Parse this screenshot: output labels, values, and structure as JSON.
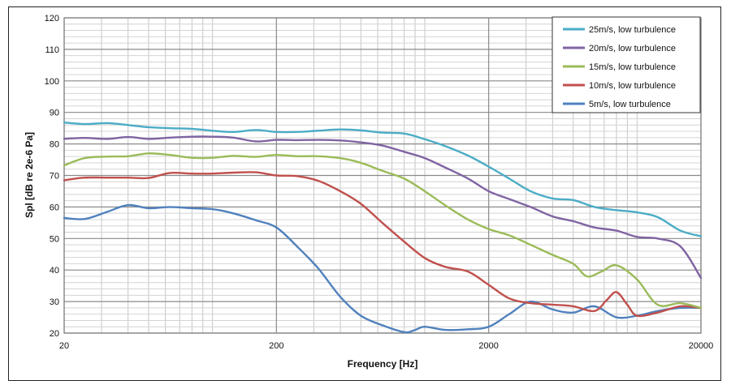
{
  "chart_data": {
    "type": "line",
    "title": "",
    "xlabel": "Frequency [Hz]",
    "ylabel": "Spl [dB re 2e-6 Pa]",
    "xscale": "log",
    "xlim": [
      20,
      20000
    ],
    "ylim": [
      20,
      120
    ],
    "x_ticks": [
      20,
      200,
      2000,
      20000
    ],
    "x_tick_labels": [
      "20",
      "200",
      "2000",
      "20000"
    ],
    "y_ticks": [
      20,
      30,
      40,
      50,
      60,
      70,
      80,
      90,
      100,
      110,
      120
    ],
    "y_tick_labels": [
      "20",
      "30",
      "40",
      "50",
      "60",
      "70",
      "80",
      "90",
      "100",
      "110",
      "120"
    ],
    "grid": true,
    "legend_position": "top-right",
    "series": [
      {
        "name": "25m/s, low turbulence",
        "color": "#4BACC6",
        "x": [
          20,
          25,
          32,
          40,
          50,
          63,
          80,
          100,
          125,
          160,
          200,
          250,
          315,
          400,
          500,
          630,
          800,
          1000,
          1250,
          1600,
          2000,
          2500,
          3150,
          4000,
          5000,
          6300,
          8000,
          10000,
          12500,
          16000,
          20000
        ],
        "y": [
          86.8,
          86.3,
          86.6,
          86.0,
          85.3,
          85.0,
          84.8,
          84.2,
          83.8,
          84.4,
          83.8,
          83.8,
          84.2,
          84.6,
          84.3,
          83.6,
          83.3,
          81.5,
          79.3,
          76.3,
          72.8,
          69.0,
          65.0,
          62.7,
          62.2,
          60.0,
          59.0,
          58.3,
          56.8,
          52.5,
          50.7
        ]
      },
      {
        "name": "20m/s, low turbulence",
        "color": "#8064A2",
        "x": [
          20,
          25,
          32,
          40,
          50,
          63,
          80,
          100,
          125,
          160,
          200,
          250,
          315,
          400,
          500,
          630,
          800,
          1000,
          1250,
          1600,
          2000,
          2500,
          3150,
          4000,
          5000,
          6300,
          8000,
          10000,
          12500,
          16000,
          20000
        ],
        "y": [
          81.6,
          81.9,
          81.6,
          82.2,
          81.6,
          82.0,
          82.3,
          82.3,
          82.0,
          80.8,
          81.3,
          81.2,
          81.3,
          81.1,
          80.5,
          79.5,
          77.5,
          75.5,
          72.5,
          69.0,
          65.0,
          62.5,
          60.0,
          57.0,
          55.5,
          53.5,
          52.5,
          50.5,
          50.0,
          47.5,
          37.5
        ]
      },
      {
        "name": "15m/s, low turbulence",
        "color": "#9BBB59",
        "x": [
          20,
          25,
          32,
          40,
          50,
          63,
          80,
          100,
          125,
          160,
          200,
          250,
          315,
          400,
          500,
          630,
          800,
          1000,
          1250,
          1600,
          2000,
          2500,
          3150,
          4000,
          5000,
          5800,
          6800,
          8000,
          10000,
          12500,
          16000,
          20000
        ],
        "y": [
          73.2,
          75.5,
          76.0,
          76.1,
          77.0,
          76.5,
          75.6,
          75.6,
          76.2,
          75.9,
          76.5,
          76.1,
          76.1,
          75.5,
          74.0,
          71.5,
          69.0,
          65.0,
          60.5,
          56.0,
          53.0,
          51.0,
          48.0,
          44.8,
          42.0,
          38.0,
          39.5,
          41.5,
          37.0,
          29.0,
          29.5,
          28.0
        ]
      },
      {
        "name": "10m/s,  low turbulence",
        "color": "#C0504D",
        "x": [
          20,
          25,
          32,
          40,
          50,
          63,
          80,
          100,
          125,
          160,
          200,
          250,
          315,
          400,
          500,
          630,
          800,
          1000,
          1250,
          1600,
          2000,
          2500,
          3150,
          4000,
          5000,
          6300,
          7200,
          8000,
          9000,
          10000,
          12500,
          16000,
          20000
        ],
        "y": [
          68.5,
          69.3,
          69.3,
          69.3,
          69.2,
          70.8,
          70.6,
          70.6,
          70.9,
          71.0,
          70.0,
          69.8,
          68.3,
          65.0,
          61.0,
          55.0,
          49.0,
          43.8,
          41.0,
          39.5,
          35.3,
          31.0,
          29.5,
          29.0,
          28.5,
          27.0,
          30.5,
          33.0,
          29.0,
          25.5,
          26.5,
          28.5,
          28.0
        ]
      },
      {
        "name": "5m/s,  low turbulence",
        "color": "#4F81BD",
        "x": [
          20,
          25,
          32,
          40,
          50,
          63,
          80,
          100,
          125,
          160,
          200,
          250,
          315,
          400,
          500,
          630,
          800,
          900,
          1000,
          1250,
          1600,
          2000,
          2500,
          3150,
          4000,
          5000,
          6300,
          8000,
          10000,
          12500,
          16000,
          20000
        ],
        "y": [
          56.5,
          56.2,
          58.5,
          60.6,
          59.6,
          60.0,
          59.6,
          59.3,
          58.0,
          55.8,
          53.5,
          47.5,
          40.5,
          31.5,
          25.5,
          22.5,
          20.3,
          21.0,
          22.0,
          21.0,
          21.2,
          22.0,
          26.0,
          30.0,
          27.5,
          26.5,
          28.5,
          25.0,
          25.5,
          27.0,
          28.0,
          28.0
        ]
      }
    ]
  }
}
